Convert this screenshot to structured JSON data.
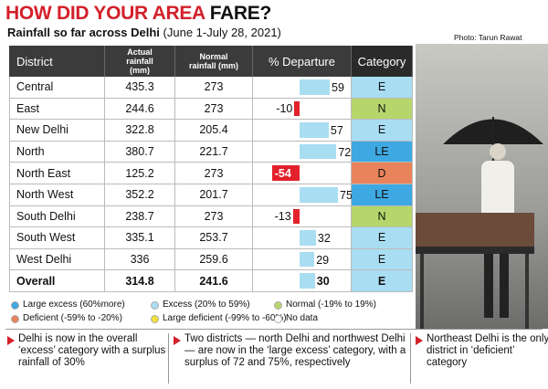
{
  "header": {
    "title_red": "HOW DID YOUR AREA",
    "title_black": "FARE?",
    "subtitle_bold": "Rainfall so far across Delhi",
    "subtitle_rest": "(June 1-July 28, 2021)",
    "photo_credit": "Photo: Tarun Rawat"
  },
  "table": {
    "columns": [
      "District",
      "Actual rainfall (mm)",
      "Normal rainfall (mm)",
      "% Departure",
      "Category"
    ],
    "rows": [
      [
        "Central",
        435.3,
        273,
        59,
        "E"
      ],
      [
        "East",
        244.6,
        273,
        -10,
        "N"
      ],
      [
        "New Delhi",
        322.8,
        205.4,
        57,
        "E"
      ],
      [
        "North",
        380.7,
        221.7,
        72,
        "LE"
      ],
      [
        "North East",
        125.2,
        273,
        -54,
        "D"
      ],
      [
        "North West",
        352.2,
        201.7,
        75,
        "LE"
      ],
      [
        "South Delhi",
        238.7,
        273,
        -13,
        "N"
      ],
      [
        "South West",
        335.1,
        253.7,
        32,
        "E"
      ],
      [
        "West Delhi",
        336,
        259.6,
        29,
        "E"
      ],
      [
        "Overall",
        314.8,
        241.6,
        30,
        "E"
      ]
    ],
    "category_colors": {
      "E": "#a9ddf2",
      "N": "#b6d66c",
      "LE": "#3ea8e2",
      "D": "#e9835b"
    },
    "bar_colors": {
      "positive": "#a9ddf2",
      "negative": "#e3212b"
    }
  },
  "legend": [
    {
      "label": "Large excess (60%more)",
      "color": "#3ea8e2"
    },
    {
      "label": "Excess (20% to 59%)",
      "color": "#a9ddf2"
    },
    {
      "label": "Normal (-19% to 19%)",
      "color": "#b6d66c"
    },
    {
      "label": "Deficient (-59% to -20%)",
      "color": "#e9835b"
    },
    {
      "label": "Large deficient (-99% to -60%)",
      "color": "#f2e03a"
    },
    {
      "label": "No data",
      "color": "#ffffff"
    }
  ],
  "notes": [
    "Delhi is now in the overall ‘excess’ category with a surplus rainfall of 30%",
    "Two districts — north Delhi and northwest Delhi — are now in the ‘large excess’ category, with a surplus of 72 and 75%, respectively",
    "Northeast Delhi is the only district in ‘deficient’ category"
  ]
}
